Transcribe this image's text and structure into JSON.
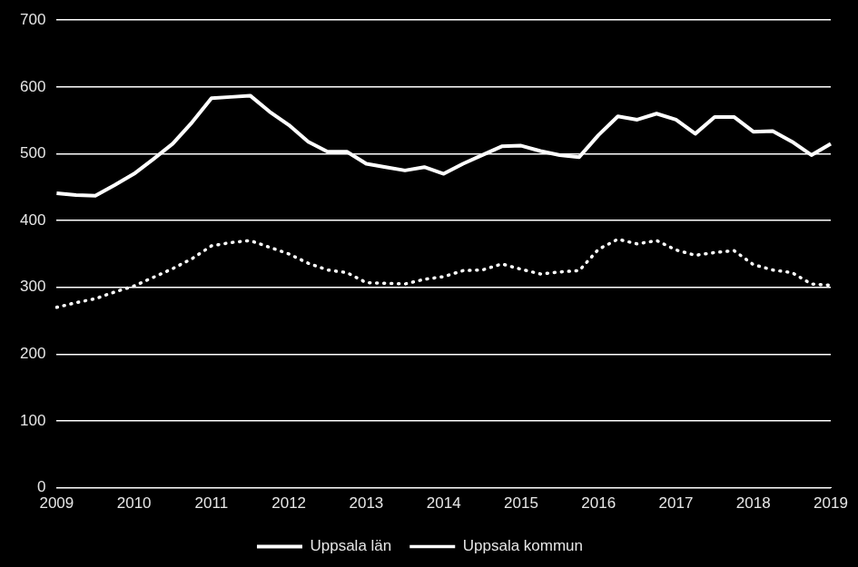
{
  "chart_data": {
    "type": "line",
    "categories": [
      "2009",
      null,
      null,
      null,
      "2010",
      null,
      null,
      null,
      "2011",
      null,
      null,
      null,
      "2012",
      null,
      null,
      null,
      "2013",
      null,
      null,
      null,
      "2014",
      null,
      null,
      null,
      "2015",
      null,
      null,
      null,
      "2016",
      null,
      null,
      null,
      "2017",
      null,
      null,
      null,
      "2018",
      null,
      null,
      null,
      "2019"
    ],
    "series": [
      {
        "name": "Uppsala län",
        "color": "#ffffff",
        "line_style": "solid",
        "values": [
          441,
          438,
          437,
          453,
          470,
          492,
          515,
          547,
          583,
          585,
          587,
          563,
          543,
          518,
          503,
          503,
          485,
          480,
          475,
          480,
          470,
          485,
          498,
          511,
          512,
          504,
          498,
          495,
          528,
          556,
          551,
          560,
          551,
          530,
          555,
          555,
          533,
          534,
          518,
          498,
          515
        ]
      },
      {
        "name": "Uppsala kommun",
        "color": "#ffffff",
        "line_style": "dotted",
        "values": [
          270,
          277,
          283,
          293,
          302,
          315,
          328,
          343,
          362,
          367,
          370,
          360,
          350,
          336,
          326,
          322,
          307,
          306,
          305,
          312,
          316,
          325,
          326,
          335,
          327,
          320,
          323,
          325,
          357,
          372,
          365,
          370,
          356,
          348,
          352,
          355,
          334,
          326,
          322,
          305,
          303
        ]
      }
    ],
    "ylim": [
      0,
      700
    ],
    "yticks": [
      0,
      100,
      200,
      300,
      400,
      500,
      600,
      700
    ],
    "grid": true,
    "legend": "bottom"
  }
}
